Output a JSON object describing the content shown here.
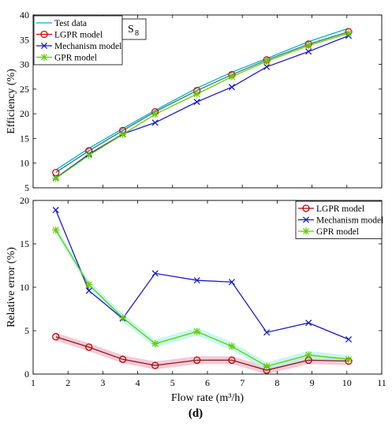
{
  "figure": {
    "panel_label": "(d)"
  },
  "chart_data": [
    {
      "type": "line",
      "xlabel": "",
      "ylabel": "Efficiency (%)",
      "xlim": [
        1,
        11
      ],
      "ylim": [
        5,
        40
      ],
      "xticks": [
        "1",
        "2",
        "3",
        "4",
        "5",
        "6",
        "7",
        "8",
        "9",
        "10",
        "11"
      ],
      "yticks": [
        "5",
        "10",
        "15",
        "20",
        "25",
        "30",
        "35",
        "40"
      ],
      "annotation": {
        "text": "S",
        "subscript": "8"
      },
      "legend_position": "top-left",
      "x": [
        1.65,
        2.6,
        3.57,
        4.5,
        5.7,
        6.7,
        7.7,
        8.9,
        10.05
      ],
      "series": [
        {
          "name": "Test data",
          "color": "#00b0c8",
          "marker": "none",
          "values": [
            8.6,
            13.0,
            17.0,
            20.7,
            25.2,
            28.4,
            31.2,
            34.6,
            37.3
          ]
        },
        {
          "name": "LGPR model",
          "color": "#e60000",
          "marker": "circle",
          "line_color": "#2a7a7a",
          "values": [
            8.1,
            12.5,
            16.6,
            20.4,
            24.7,
            27.9,
            30.9,
            34.1,
            36.6
          ]
        },
        {
          "name": "Mechanism model",
          "color": "#1a1acc",
          "marker": "x",
          "values": [
            7.0,
            11.8,
            15.9,
            18.2,
            22.4,
            25.4,
            29.5,
            32.6,
            35.8
          ]
        },
        {
          "name": "GPR model",
          "color": "#66cc00",
          "marker": "star",
          "values": [
            6.9,
            11.6,
            15.8,
            19.9,
            24.0,
            27.5,
            30.6,
            33.8,
            36.3
          ]
        }
      ]
    },
    {
      "type": "line",
      "xlabel": "Flow rate (m³/h)",
      "ylabel": "Relative error (%)",
      "xlim": [
        1,
        11
      ],
      "ylim": [
        0,
        20
      ],
      "xticks": [
        "1",
        "2",
        "3",
        "4",
        "5",
        "6",
        "7",
        "8",
        "9",
        "10",
        "11"
      ],
      "yticks": [
        "0",
        "5",
        "10",
        "15",
        "20"
      ],
      "legend_position": "top-right",
      "x": [
        1.65,
        2.6,
        3.57,
        4.5,
        5.7,
        6.7,
        7.7,
        8.9,
        10.05
      ],
      "series": [
        {
          "name": "LGPR model",
          "color": "#c00000",
          "marker": "circle",
          "line_color": "#7a2020",
          "band": "#f4b6c8",
          "values": [
            4.3,
            3.1,
            1.7,
            1.0,
            1.6,
            1.6,
            0.45,
            1.6,
            1.5
          ]
        },
        {
          "name": "Mechanism model",
          "color": "#1a1acc",
          "marker": "x",
          "values": [
            18.9,
            9.6,
            6.4,
            11.6,
            10.8,
            10.6,
            4.8,
            5.9,
            4.0
          ]
        },
        {
          "name": "GPR model",
          "color": "#66cc00",
          "marker": "star",
          "band": "#b4f4ec",
          "values": [
            16.6,
            10.3,
            6.5,
            3.5,
            4.9,
            3.2,
            0.9,
            2.2,
            1.7
          ]
        }
      ]
    }
  ]
}
